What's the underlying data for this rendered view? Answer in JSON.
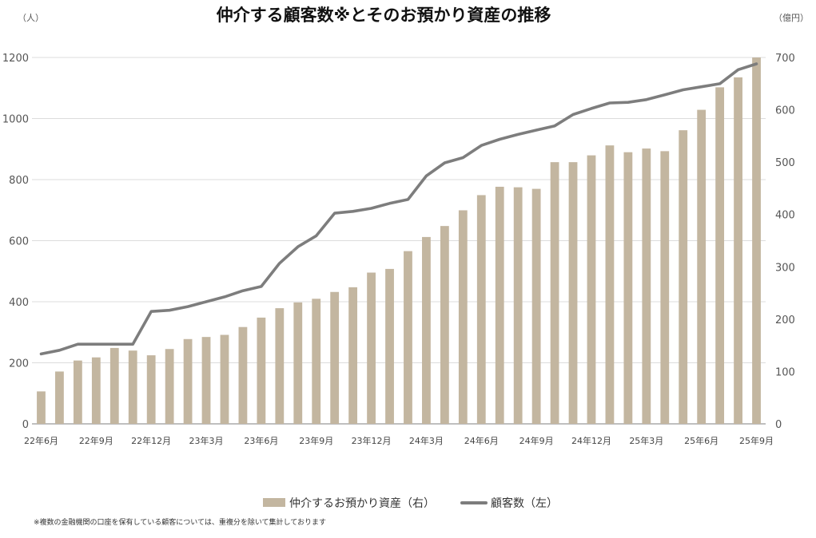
{
  "chart_data": {
    "type": "bar+line",
    "title": "仲介する顧客数※とそのお預かり資産の推移",
    "left_axis": {
      "unit": "（人）",
      "ticks": [
        "0",
        "200",
        "400",
        "600",
        "800",
        "1000",
        "1200"
      ],
      "ylim": [
        0,
        1200
      ]
    },
    "right_axis": {
      "unit": "（億円）",
      "ticks": [
        "0",
        "100",
        "200",
        "300",
        "400",
        "500",
        "600",
        "700"
      ],
      "ylim": [
        0,
        700
      ]
    },
    "categories": [
      "22/06",
      "22/07",
      "22/08",
      "22/09",
      "22/10",
      "22/11",
      "22/12",
      "23/01",
      "23/02",
      "23/03",
      "23/04",
      "23/05",
      "23/06",
      "23/07",
      "23/08",
      "23/09",
      "23/10",
      "23/11",
      "23/12",
      "24/01",
      "24/02",
      "24/03",
      "24/04",
      "24/05",
      "24/06",
      "24/07",
      "24/08",
      "24/09",
      "24/10",
      "24/11",
      "24/12",
      "25/01",
      "25/02",
      "25/03",
      "25/04",
      "25/05",
      "25/06",
      "25/07",
      "25/08",
      "25/09"
    ],
    "x_tick_labels": [
      "22年6月",
      "22年9月",
      "22年12月",
      "23年3月",
      "23年6月",
      "23年9月",
      "23年12月",
      "24年3月",
      "24年6月",
      "24年9月",
      "24年12月",
      "25年3月",
      "25年6月",
      "25年9月"
    ],
    "series": [
      {
        "name": "仲介するお預かり資産（右）",
        "type": "bar",
        "axis": "right",
        "color": "#c3b6a0",
        "values": [
          62,
          100,
          121,
          127,
          145,
          140,
          131,
          143,
          162,
          166,
          170,
          185,
          203,
          221,
          232,
          239,
          252,
          261,
          289,
          296,
          330,
          357,
          378,
          408,
          437,
          453,
          452,
          449,
          500,
          500,
          513,
          532,
          519,
          526,
          521,
          561,
          600,
          643,
          662,
          700
        ]
      },
      {
        "name": "顧客数（左）",
        "type": "line",
        "axis": "left",
        "color": "#7d7d7d",
        "values": [
          229,
          241,
          261,
          261,
          261,
          261,
          368,
          372,
          384,
          400,
          416,
          436,
          450,
          526,
          580,
          616,
          690,
          696,
          706,
          722,
          735,
          812,
          855,
          872,
          912,
          932,
          948,
          962,
          976,
          1013,
          1033,
          1051,
          1053,
          1062,
          1078,
          1094,
          1104,
          1114,
          1160,
          1179
        ]
      }
    ],
    "legend": {
      "position": "bottom-center",
      "items": [
        "仲介するお預かり資産（右）",
        "顧客数（左）"
      ]
    },
    "grid": "horizontal",
    "footnote": "※複数の金融機関の口座を保有している顧客については、重複分を除いて集計しております"
  }
}
